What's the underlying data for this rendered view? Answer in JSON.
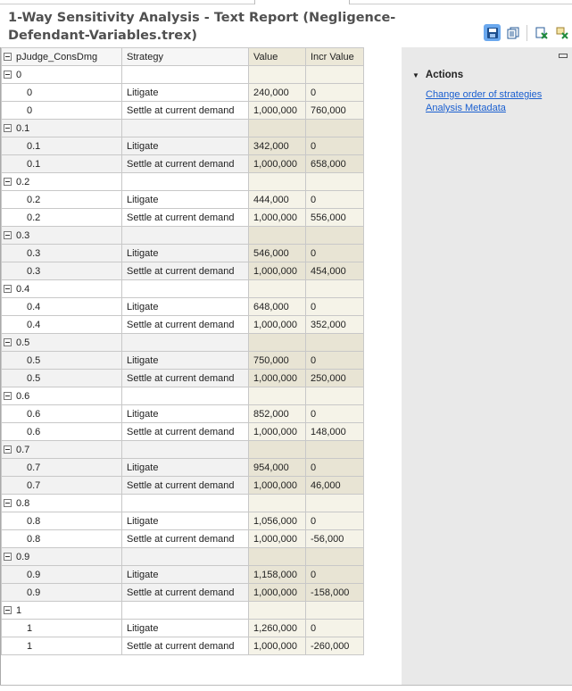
{
  "title": "1-Way Sensitivity Analysis - Text Report (Negligence-Defendant-Variables.trex)",
  "toolbar": {
    "icons": [
      "save-icon",
      "copy-icon",
      "export-excel-icon",
      "export-excel-alt-icon"
    ]
  },
  "table": {
    "headers": [
      "pJudge_ConsDmg",
      "Strategy",
      "Value",
      "Incr Value"
    ],
    "groups": [
      {
        "key": "0",
        "rows": [
          [
            "0",
            "Litigate",
            "240,000",
            "0"
          ],
          [
            "0",
            "Settle at current demand",
            "1,000,000",
            "760,000"
          ]
        ]
      },
      {
        "key": "0.1",
        "rows": [
          [
            "0.1",
            "Litigate",
            "342,000",
            "0"
          ],
          [
            "0.1",
            "Settle at current demand",
            "1,000,000",
            "658,000"
          ]
        ]
      },
      {
        "key": "0.2",
        "rows": [
          [
            "0.2",
            "Litigate",
            "444,000",
            "0"
          ],
          [
            "0.2",
            "Settle at current demand",
            "1,000,000",
            "556,000"
          ]
        ]
      },
      {
        "key": "0.3",
        "rows": [
          [
            "0.3",
            "Litigate",
            "546,000",
            "0"
          ],
          [
            "0.3",
            "Settle at current demand",
            "1,000,000",
            "454,000"
          ]
        ]
      },
      {
        "key": "0.4",
        "rows": [
          [
            "0.4",
            "Litigate",
            "648,000",
            "0"
          ],
          [
            "0.4",
            "Settle at current demand",
            "1,000,000",
            "352,000"
          ]
        ]
      },
      {
        "key": "0.5",
        "rows": [
          [
            "0.5",
            "Litigate",
            "750,000",
            "0"
          ],
          [
            "0.5",
            "Settle at current demand",
            "1,000,000",
            "250,000"
          ]
        ]
      },
      {
        "key": "0.6",
        "rows": [
          [
            "0.6",
            "Litigate",
            "852,000",
            "0"
          ],
          [
            "0.6",
            "Settle at current demand",
            "1,000,000",
            "148,000"
          ]
        ]
      },
      {
        "key": "0.7",
        "rows": [
          [
            "0.7",
            "Litigate",
            "954,000",
            "0"
          ],
          [
            "0.7",
            "Settle at current demand",
            "1,000,000",
            "46,000"
          ]
        ]
      },
      {
        "key": "0.8",
        "rows": [
          [
            "0.8",
            "Litigate",
            "1,056,000",
            "0"
          ],
          [
            "0.8",
            "Settle at current demand",
            "1,000,000",
            "-56,000"
          ]
        ]
      },
      {
        "key": "0.9",
        "rows": [
          [
            "0.9",
            "Litigate",
            "1,158,000",
            "0"
          ],
          [
            "0.9",
            "Settle at current demand",
            "1,000,000",
            "-158,000"
          ]
        ]
      },
      {
        "key": "1",
        "rows": [
          [
            "1",
            "Litigate",
            "1,260,000",
            "0"
          ],
          [
            "1",
            "Settle at current demand",
            "1,000,000",
            "-260,000"
          ]
        ]
      }
    ]
  },
  "actions": {
    "heading": "Actions",
    "links": [
      "Change order of strategies",
      "Analysis Metadata"
    ]
  }
}
